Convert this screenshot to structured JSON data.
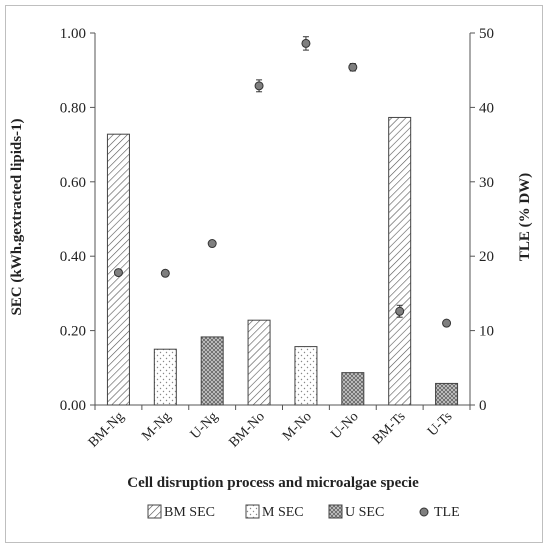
{
  "chart_data": {
    "type": "bar",
    "categories": [
      "BM-Ng",
      "M-Ng",
      "U-Ng",
      "BM-No",
      "M-No",
      "U-No",
      "BM-Ts",
      "U-Ts"
    ],
    "series": [
      {
        "name": "BM SEC",
        "axis": "left",
        "pattern": "diagonal-hatch",
        "values": [
          0.728,
          null,
          null,
          0.228,
          null,
          null,
          0.773,
          null
        ]
      },
      {
        "name": "M SEC",
        "axis": "left",
        "pattern": "dots",
        "values": [
          null,
          0.15,
          null,
          null,
          0.157,
          null,
          null,
          null
        ]
      },
      {
        "name": "U SEC",
        "axis": "left",
        "pattern": "cross-hatch",
        "values": [
          null,
          null,
          0.183,
          null,
          null,
          0.087,
          null,
          0.058
        ]
      },
      {
        "name": "TLE",
        "axis": "right",
        "type": "scatter",
        "values": [
          17.8,
          17.7,
          21.7,
          42.9,
          48.6,
          45.4,
          12.6,
          11.0
        ],
        "errors": [
          0,
          0,
          0,
          0.8,
          0.9,
          0.5,
          0.8,
          0
        ]
      }
    ],
    "xlabel": "Cell disruption process and microalgae specie",
    "ylabel": "SEC (kWh.gextracted lipids-1)",
    "y2label": "TLE (% DW)",
    "ylim": [
      0,
      1.0
    ],
    "y2lim": [
      0,
      50
    ],
    "yticks": [
      "0.00",
      "0.20",
      "0.40",
      "0.60",
      "0.80",
      "1.00"
    ],
    "y2ticks": [
      "0",
      "10",
      "20",
      "30",
      "40",
      "50"
    ],
    "grid": false,
    "legend_position": "bottom",
    "colors": {
      "bar_stroke": "#444444",
      "point": "#7f7f7f",
      "point_stroke": "#333333"
    }
  }
}
